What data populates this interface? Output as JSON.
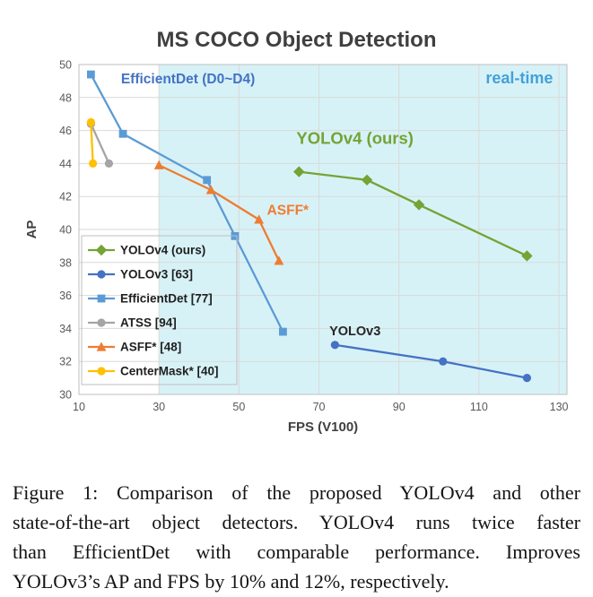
{
  "figure": {
    "caption_lines": [
      "Figure 1: Comparison of the proposed YOLOv4 and other",
      "state-of-the-art object detectors. YOLOv4 runs twice faster",
      "than EfficientDet with comparable performance. Improves",
      "YOLOv3’s AP and FPS by 10% and 12%, respectively."
    ]
  },
  "chart_data": {
    "type": "line",
    "title": "MS COCO Object Detection",
    "xlabel": "FPS (V100)",
    "ylabel": "AP",
    "xlim": [
      10,
      132
    ],
    "ylim": [
      30,
      50
    ],
    "xticks": [
      10,
      30,
      50,
      70,
      90,
      110,
      130
    ],
    "yticks": [
      30,
      32,
      34,
      36,
      38,
      40,
      42,
      44,
      46,
      48,
      50
    ],
    "grid": true,
    "legend_position": "lower-left",
    "colors": {
      "grid": "#d9d9d9",
      "border": "#bfbfbf",
      "tick": "#595959",
      "axis_title": "#404040",
      "title": "#3f3f3f",
      "legend_text": "#1f1f1f"
    },
    "realtime_region": {
      "x_start": 30,
      "x_end": 132,
      "fill": "#d7f2f7",
      "label": "real-time"
    },
    "series": [
      {
        "id": "yolov4",
        "name": "YOLOv4 (ours)",
        "color": "#75a335",
        "marker": "diamond",
        "points": [
          [
            65,
            43.5
          ],
          [
            82,
            43.0
          ],
          [
            95,
            41.5
          ],
          [
            122,
            38.4
          ]
        ]
      },
      {
        "id": "yolov3",
        "name": "YOLOv3 [63]",
        "color": "#4472c4",
        "marker": "circle",
        "points": [
          [
            74,
            33.0
          ],
          [
            101,
            32.0
          ],
          [
            122,
            31.0
          ]
        ]
      },
      {
        "id": "efficientdet",
        "name": "EfficientDet [77]",
        "color": "#5b9bd5",
        "marker": "square",
        "points": [
          [
            13,
            49.4
          ],
          [
            21,
            45.8
          ],
          [
            42,
            43.0
          ],
          [
            49,
            39.6
          ],
          [
            61,
            33.8
          ]
        ]
      },
      {
        "id": "atss",
        "name": "ATSS [94]",
        "color": "#a5a5a5",
        "marker": "circle",
        "points": [
          [
            13,
            46.4
          ],
          [
            17.5,
            44.0
          ]
        ]
      },
      {
        "id": "asff",
        "name": "ASFF* [48]",
        "color": "#ed7d31",
        "marker": "triangle",
        "points": [
          [
            30,
            43.9
          ],
          [
            43,
            42.4
          ],
          [
            55,
            40.6
          ],
          [
            60,
            38.1
          ]
        ]
      },
      {
        "id": "centermask",
        "name": "CenterMask* [40]",
        "color": "#ffc000",
        "marker": "circle",
        "points": [
          [
            13,
            46.5
          ],
          [
            13.5,
            44.0
          ]
        ]
      }
    ],
    "annotations": [
      {
        "id": "efficientdet-label",
        "text": "EfficientDet (D0~D4)",
        "x": 20.5,
        "y": 48.85,
        "color": "#4472c4",
        "size": 15.5,
        "anchor": "start"
      },
      {
        "id": "realtime-label",
        "text": "real-time",
        "x": 128.5,
        "y": 48.85,
        "color": "#44a1d9",
        "size": 18,
        "anchor": "end"
      },
      {
        "id": "yolov4-label",
        "text": "YOLOv4 (ours)",
        "x": 79,
        "y": 45.2,
        "color": "#75a335",
        "size": 18.5,
        "anchor": "middle"
      },
      {
        "id": "asff-label",
        "text": "ASFF*",
        "x": 57,
        "y": 40.9,
        "color": "#ed7d31",
        "size": 15.5,
        "anchor": "start"
      },
      {
        "id": "yolov3-label",
        "text": "YOLOv3",
        "x": 79,
        "y": 33.6,
        "color": "#262626",
        "size": 14.5,
        "anchor": "middle"
      }
    ]
  }
}
